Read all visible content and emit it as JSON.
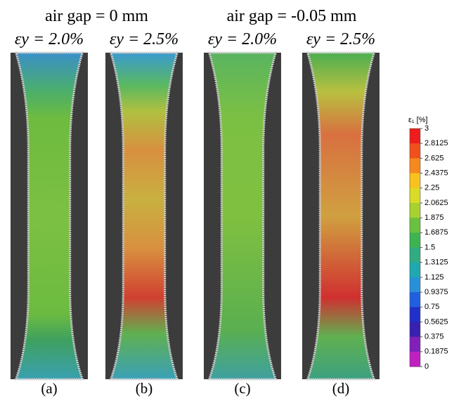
{
  "groups": [
    {
      "title": "air gap = 0 mm",
      "panels": [
        {
          "strain": "εy = 2.0%",
          "label": "(a)"
        },
        {
          "strain": "εy = 2.5%",
          "label": "(b)"
        }
      ]
    },
    {
      "title": "air gap = -0.05 mm",
      "panels": [
        {
          "strain": "εy = 2.0%",
          "label": "(c)"
        },
        {
          "strain": "εy = 2.5%",
          "label": "(d)"
        }
      ]
    }
  ],
  "colorbar": {
    "title": "ε₁ [%]",
    "lim": [
      0,
      3
    ],
    "ticks": [
      3,
      2.8125,
      2.625,
      2.4375,
      2.25,
      2.0625,
      1.875,
      1.6875,
      1.5,
      1.3125,
      1.125,
      0.9375,
      0.75,
      0.5625,
      0.375,
      0.1875,
      0
    ]
  }
}
